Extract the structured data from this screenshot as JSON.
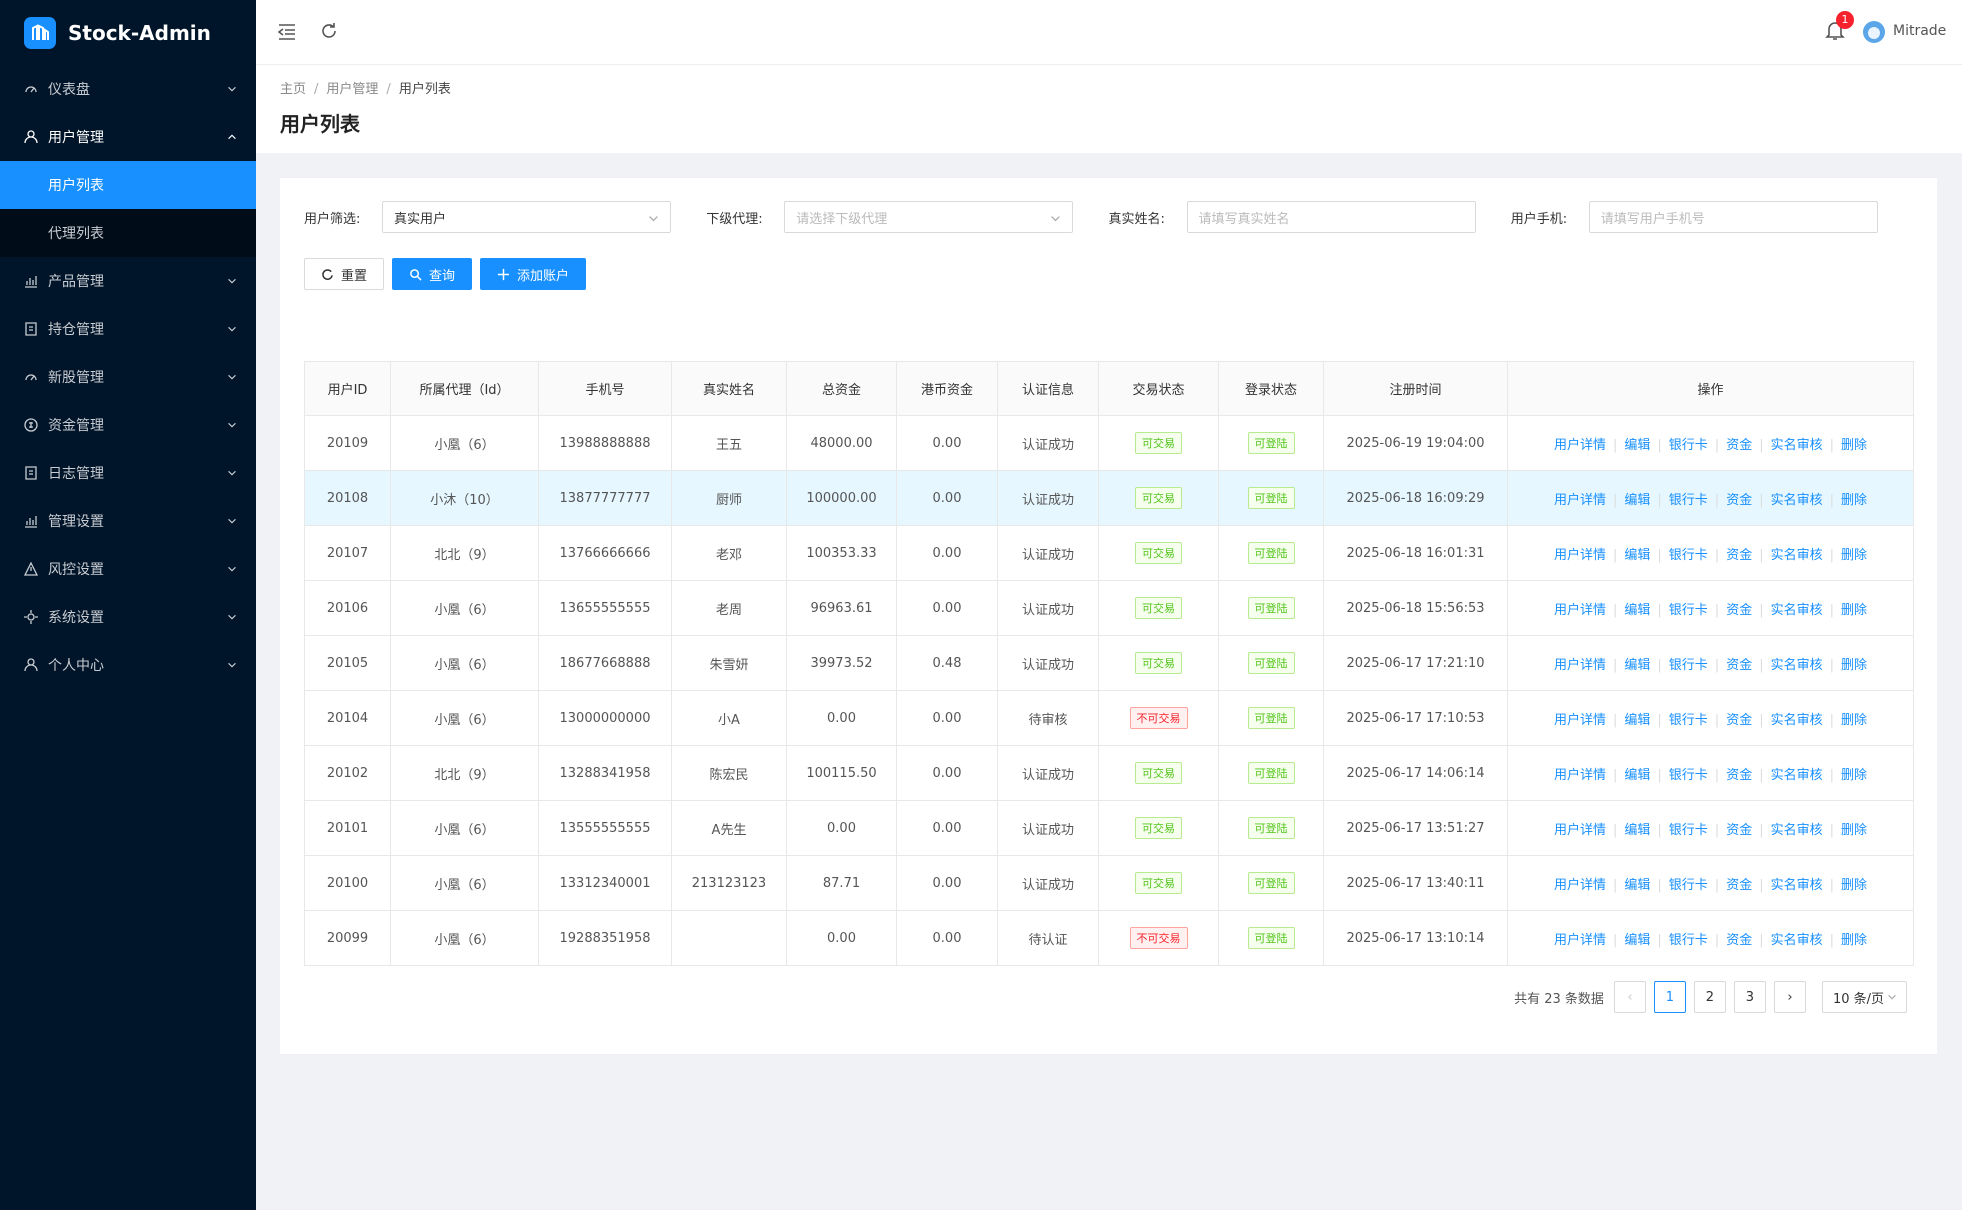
{
  "sidebar": {
    "brand": "Stock-Admin",
    "menu": [
      {
        "label": "仪表盘",
        "icon": "gauge"
      },
      {
        "label": "用户管理",
        "icon": "user",
        "open": true,
        "children": [
          {
            "label": "用户列表",
            "active": true
          },
          {
            "label": "代理列表"
          }
        ]
      },
      {
        "label": "产品管理",
        "icon": "chart"
      },
      {
        "label": "持仓管理",
        "icon": "box"
      },
      {
        "label": "新股管理",
        "icon": "gauge"
      },
      {
        "label": "资金管理",
        "icon": "coin"
      },
      {
        "label": "日志管理",
        "icon": "box"
      },
      {
        "label": "管理设置",
        "icon": "chart"
      },
      {
        "label": "风控设置",
        "icon": "warn"
      },
      {
        "label": "系统设置",
        "icon": "gear"
      },
      {
        "label": "个人中心",
        "icon": "user"
      }
    ]
  },
  "header": {
    "badge": "1",
    "user": "Mitrade"
  },
  "breadcrumb": [
    "主页",
    "用户管理",
    "用户列表"
  ],
  "page_title": "用户列表",
  "filters": [
    {
      "label": "用户筛选:",
      "value": "真实用户",
      "select": true
    },
    {
      "label": "下级代理:",
      "placeholder": "请选择下级代理",
      "select": true
    },
    {
      "label": "真实姓名:",
      "placeholder": "请填写真实姓名"
    },
    {
      "label": "用户手机:",
      "placeholder": "请填写用户手机号"
    }
  ],
  "buttons": [
    {
      "label": "重置",
      "style": "default"
    },
    {
      "label": "查询",
      "style": "primary"
    },
    {
      "label": "添加账户",
      "style": "primary"
    }
  ],
  "table": {
    "columns": [
      "用户ID",
      "所属代理（Id）",
      "手机号",
      "真实姓名",
      "总资金",
      "港币资金",
      "认证信息",
      "交易状态",
      "登录状态",
      "注册时间",
      "操作"
    ],
    "actions": [
      "用户详情",
      "编辑",
      "银行卡",
      "资金",
      "实名审核",
      "删除"
    ],
    "rows": [
      [
        "20109",
        "小凰（6）",
        "13988888888",
        "王五",
        "48000.00",
        "0.00",
        "认证成功",
        {
          "text": "可交易",
          "color": "green"
        },
        {
          "text": "可登陆",
          "color": "green"
        },
        "2025-06-19 19:04:00"
      ],
      [
        "20108",
        "小沐（10）",
        "13877777777",
        "厨师",
        "100000.00",
        "0.00",
        "认证成功",
        {
          "text": "可交易",
          "color": "green"
        },
        {
          "text": "可登陆",
          "color": "green"
        },
        "2025-06-18 16:09:29"
      ],
      [
        "20107",
        "北北（9）",
        "13766666666",
        "老邓",
        "100353.33",
        "0.00",
        "认证成功",
        {
          "text": "可交易",
          "color": "green"
        },
        {
          "text": "可登陆",
          "color": "green"
        },
        "2025-06-18 16:01:31"
      ],
      [
        "20106",
        "小凰（6）",
        "13655555555",
        "老周",
        "96963.61",
        "0.00",
        "认证成功",
        {
          "text": "可交易",
          "color": "green"
        },
        {
          "text": "可登陆",
          "color": "green"
        },
        "2025-06-18 15:56:53"
      ],
      [
        "20105",
        "小凰（6）",
        "18677668888",
        "朱雪妍",
        "39973.52",
        "0.48",
        "认证成功",
        {
          "text": "可交易",
          "color": "green"
        },
        {
          "text": "可登陆",
          "color": "green"
        },
        "2025-06-17 17:21:10"
      ],
      [
        "20104",
        "小凰（6）",
        "13000000000",
        "小A",
        "0.00",
        "0.00",
        "待审核",
        {
          "text": "不可交易",
          "color": "red"
        },
        {
          "text": "可登陆",
          "color": "green"
        },
        "2025-06-17 17:10:53"
      ],
      [
        "20102",
        "北北（9）",
        "13288341958",
        "陈宏民",
        "100115.50",
        "0.00",
        "认证成功",
        {
          "text": "可交易",
          "color": "green"
        },
        {
          "text": "可登陆",
          "color": "green"
        },
        "2025-06-17 14:06:14"
      ],
      [
        "20101",
        "小凰（6）",
        "13555555555",
        "A先生",
        "0.00",
        "0.00",
        "认证成功",
        {
          "text": "可交易",
          "color": "green"
        },
        {
          "text": "可登陆",
          "color": "green"
        },
        "2025-06-17 13:51:27"
      ],
      [
        "20100",
        "小凰（6）",
        "13312340001",
        "213123123",
        "87.71",
        "0.00",
        "认证成功",
        {
          "text": "可交易",
          "color": "green"
        },
        {
          "text": "可登陆",
          "color": "green"
        },
        "2025-06-17 13:40:11"
      ],
      [
        "20099",
        "小凰（6）",
        "19288351958",
        null,
        "0.00",
        "0.00",
        "待认证",
        {
          "text": "不可交易",
          "color": "red"
        },
        {
          "text": "可登陆",
          "color": "green"
        },
        "2025-06-17 13:10:14"
      ]
    ]
  },
  "pagination": {
    "total": "共有 23 条数据",
    "pages": [
      "1",
      "2",
      "3"
    ],
    "current": 0,
    "size": "10 条/页"
  }
}
